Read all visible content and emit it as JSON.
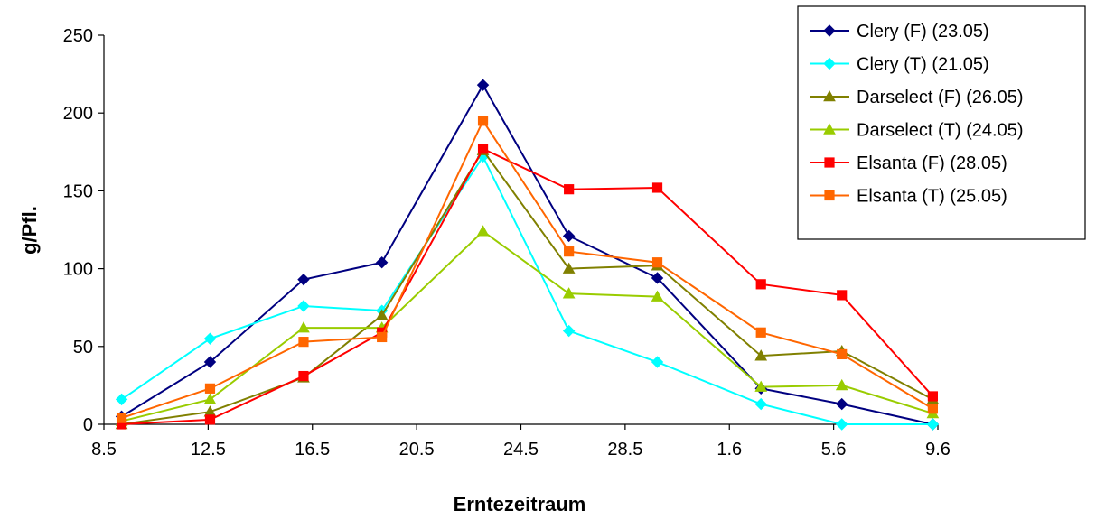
{
  "chart_data": {
    "type": "line",
    "title": "",
    "xlabel": "Erntezeitraum",
    "ylabel": "g/Pfl.",
    "ylim": [
      0,
      250
    ],
    "yticks": [
      0,
      50,
      100,
      150,
      200,
      250
    ],
    "xticks": [
      "8.5",
      "12.5",
      "16.5",
      "20.5",
      "24.5",
      "28.5",
      "1.6",
      "5.6",
      "9.6"
    ],
    "xlim": [
      8.5,
      41.5
    ],
    "x": [
      9.2,
      12.7,
      16.4,
      19.5,
      23.5,
      26.9,
      30.4,
      34.5,
      37.7,
      41.3
    ],
    "grid": false,
    "legend_position": "top-right",
    "series": [
      {
        "name": "Clery (F) (23.05)",
        "color": "#000080",
        "marker": "diamond",
        "values": [
          5,
          40,
          93,
          104,
          218,
          121,
          94,
          23,
          13,
          0
        ]
      },
      {
        "name": "Clery (T) (21.05)",
        "color": "#00FFFF",
        "marker": "diamond",
        "values": [
          16,
          55,
          76,
          73,
          172,
          60,
          40,
          13,
          0,
          0
        ]
      },
      {
        "name": "Darselect (F) (26.05)",
        "color": "#808000",
        "marker": "triangle",
        "values": [
          0,
          8,
          30,
          70,
          176,
          100,
          102,
          44,
          47,
          16
        ]
      },
      {
        "name": "Darselect (T) (24.05)",
        "color": "#99CC00",
        "marker": "triangle",
        "values": [
          2,
          16,
          62,
          62,
          124,
          84,
          82,
          24,
          25,
          7
        ]
      },
      {
        "name": "Elsanta (F) (28.05)",
        "color": "#FF0000",
        "marker": "square",
        "values": [
          0,
          3,
          31,
          59,
          177,
          151,
          152,
          90,
          83,
          18
        ]
      },
      {
        "name": "Elsanta (T) (25.05)",
        "color": "#FF6600",
        "marker": "square",
        "values": [
          4,
          23,
          53,
          56,
          195,
          111,
          104,
          59,
          45,
          10
        ]
      }
    ]
  }
}
